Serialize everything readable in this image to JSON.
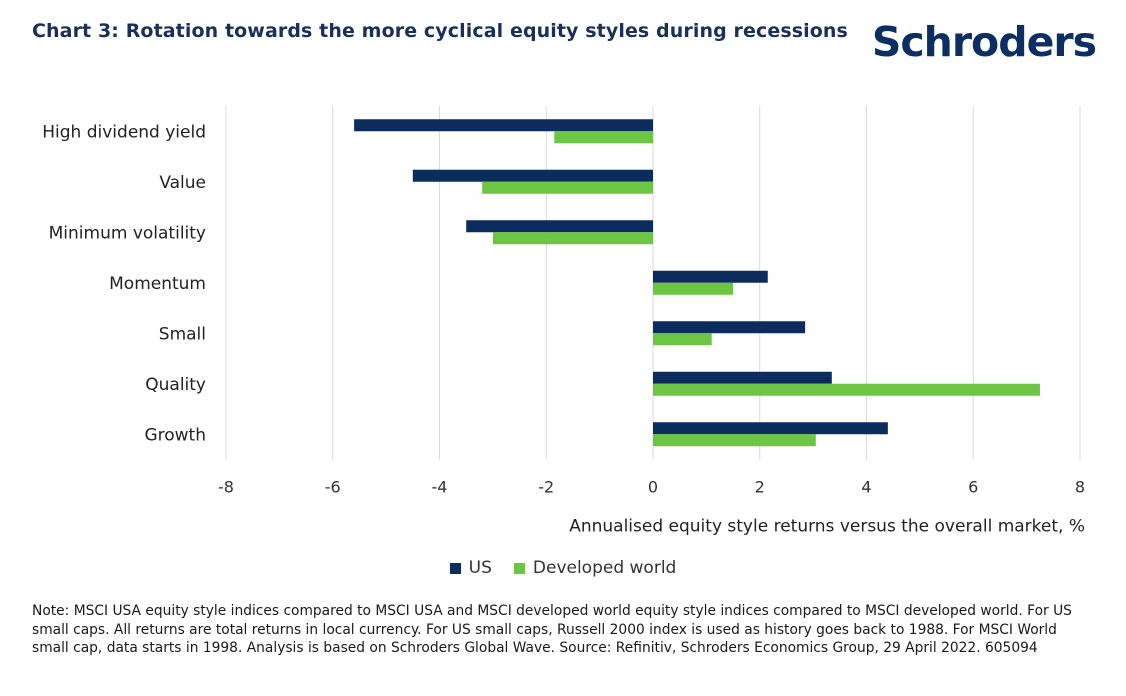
{
  "title": "Chart 3: Rotation towards the more cyclical equity styles during recessions",
  "logo_text": "Schroders",
  "note": "Note: MSCI USA equity style indices compared to MSCI USA and MSCI developed world equity style indices compared to MSCI developed world. For US small caps. All returns are total returns in local currency. For US small caps, Russell 2000 index is used as history goes back to 1988. For MSCI World small cap, data starts in 1998. Analysis is based on Schroders Global Wave. Source: Refinitiv, Schroders Economics Group, 29 April 2022. 605094",
  "colors": {
    "us": "#0d2c5e",
    "developed": "#6cc644",
    "grid": "#d9d9d9",
    "title": "#1b2f5b"
  },
  "chart_data": {
    "type": "bar",
    "orientation": "horizontal",
    "categories": [
      "High dividend yield",
      "Value",
      "Minimum volatility",
      "Momentum",
      "Small",
      "Quality",
      "Growth"
    ],
    "series": [
      {
        "name": "US",
        "values": [
          -5.6,
          -4.5,
          -3.5,
          2.15,
          2.85,
          3.35,
          4.4
        ]
      },
      {
        "name": "Developed world",
        "values": [
          -1.85,
          -3.2,
          -3.0,
          1.5,
          1.1,
          7.25,
          3.05
        ]
      }
    ],
    "xlim": [
      -8,
      8
    ],
    "xticks": [
      "-8",
      "-6",
      "-4",
      "-2",
      "0",
      "2",
      "4",
      "6",
      "8"
    ],
    "xlabel": "Annualised equity style returns versus the overall market, %",
    "grid": true,
    "legend": "bottom-center"
  }
}
